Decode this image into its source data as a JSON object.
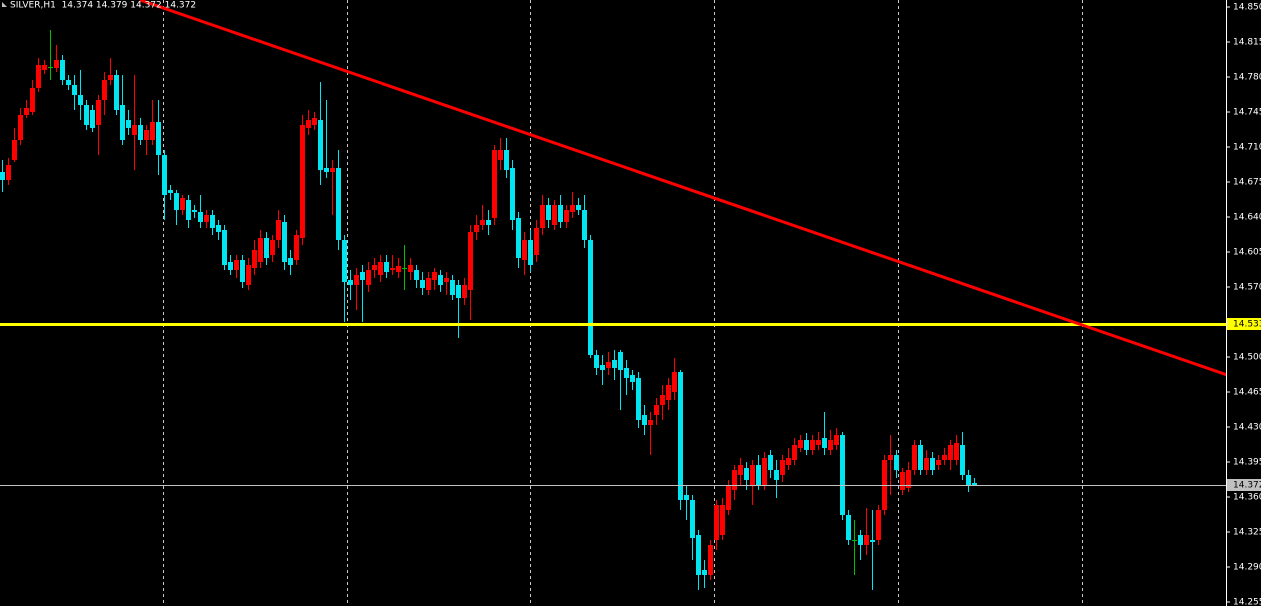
{
  "chart_data": {
    "type": "candlestick",
    "title": "SILVER,H1  14.374 14.379 14.372 14.372",
    "up_color": "#ff0000",
    "down_color": "#00e5f0",
    "doji_color": "#00c000",
    "ylim": [
      14.251,
      14.857
    ],
    "yticks": [
      {
        "value": 14.85,
        "label": "14.850"
      },
      14.815,
      {
        "value": 14.78,
        "label": "14.780"
      },
      14.745,
      {
        "value": 14.71,
        "label": "14.710"
      },
      14.675,
      {
        "value": 14.64,
        "label": "14.640"
      },
      14.605,
      {
        "value": 14.57,
        "label": "14.570"
      },
      {
        "value": 14.5,
        "label": "14.500"
      },
      14.465,
      {
        "value": 14.43,
        "label": "14.430"
      },
      14.395,
      {
        "value": 14.36,
        "label": "14.360"
      },
      14.325,
      {
        "value": 14.29,
        "label": "14.290"
      },
      14.255
    ],
    "levels": [
      {
        "value": 14.533,
        "color": "#ffff00"
      },
      {
        "value": 14.372,
        "color": "#c0c0c0"
      }
    ],
    "trendline": {
      "color": "#ff0000",
      "x": [
        23,
        210
      ],
      "values": [
        14.857,
        14.47
      ]
    },
    "ohlc": [
      [
        14.685,
        14.697,
        14.665,
        14.677
      ],
      [
        14.677,
        14.699,
        14.672,
        14.692
      ],
      [
        14.697,
        14.729,
        14.695,
        14.717
      ],
      [
        14.717,
        14.749,
        14.712,
        14.742
      ],
      [
        14.742,
        14.757,
        14.739,
        14.749
      ],
      [
        14.745,
        14.777,
        14.742,
        14.769
      ],
      [
        14.769,
        14.799,
        14.765,
        14.792
      ],
      [
        14.787,
        14.797,
        14.783,
        14.792
      ],
      [
        14.79,
        14.827,
        14.777,
        14.79
      ],
      [
        14.789,
        14.812,
        14.785,
        14.797
      ],
      [
        14.797,
        14.802,
        14.772,
        14.777
      ],
      [
        14.777,
        14.782,
        14.767,
        14.772
      ],
      [
        14.772,
        14.782,
        14.747,
        14.762
      ],
      [
        14.762,
        14.787,
        14.737,
        14.752
      ],
      [
        14.752,
        14.757,
        14.727,
        14.732
      ],
      [
        14.747,
        14.752,
        14.725,
        14.729
      ],
      [
        14.732,
        14.762,
        14.702,
        14.757
      ],
      [
        14.757,
        14.785,
        14.742,
        14.777
      ],
      [
        14.777,
        14.799,
        14.772,
        14.782
      ],
      [
        14.782,
        14.787,
        14.742,
        14.747
      ],
      [
        14.752,
        14.782,
        14.712,
        14.717
      ],
      [
        14.737,
        14.747,
        14.722,
        14.729
      ],
      [
        14.722,
        14.782,
        14.687,
        14.732
      ],
      [
        14.732,
        14.739,
        14.712,
        14.717
      ],
      [
        14.717,
        14.732,
        14.702,
        14.727
      ],
      [
        14.717,
        14.757,
        14.712,
        14.735
      ],
      [
        14.735,
        14.757,
        14.682,
        14.702
      ],
      [
        14.702,
        14.707,
        14.637,
        14.662
      ],
      [
        14.667,
        14.672,
        14.657,
        14.664
      ],
      [
        14.664,
        14.667,
        14.632,
        14.647
      ],
      [
        14.647,
        14.662,
        14.642,
        14.659
      ],
      [
        14.657,
        14.662,
        14.629,
        14.637
      ],
      [
        14.647,
        14.652,
        14.639,
        14.645
      ],
      [
        14.645,
        14.662,
        14.629,
        14.635
      ],
      [
        14.635,
        14.647,
        14.629,
        14.642
      ],
      [
        14.642,
        14.647,
        14.622,
        14.629
      ],
      [
        14.632,
        14.637,
        14.617,
        14.625
      ],
      [
        14.627,
        14.632,
        14.587,
        14.592
      ],
      [
        14.595,
        14.602,
        14.582,
        14.587
      ],
      [
        14.587,
        14.602,
        14.579,
        14.597
      ],
      [
        14.597,
        14.602,
        14.569,
        14.575
      ],
      [
        14.572,
        14.599,
        14.567,
        14.592
      ],
      [
        14.589,
        14.617,
        14.582,
        14.607
      ],
      [
        14.595,
        14.627,
        14.589,
        14.619
      ],
      [
        14.619,
        14.625,
        14.592,
        14.599
      ],
      [
        14.602,
        14.622,
        14.595,
        14.617
      ],
      [
        14.617,
        14.647,
        14.609,
        14.637
      ],
      [
        14.635,
        14.642,
        14.587,
        14.595
      ],
      [
        14.599,
        14.607,
        14.582,
        14.592
      ],
      [
        14.597,
        14.627,
        14.592,
        14.622
      ],
      [
        14.619,
        14.742,
        14.612,
        14.732
      ],
      [
        14.729,
        14.747,
        14.722,
        14.737
      ],
      [
        14.732,
        14.745,
        14.727,
        14.739
      ],
      [
        14.737,
        14.775,
        14.672,
        14.687
      ],
      [
        14.689,
        14.757,
        14.679,
        14.685
      ],
      [
        14.685,
        14.697,
        14.642,
        14.689
      ],
      [
        14.689,
        14.707,
        14.607,
        14.617
      ],
      [
        14.617,
        14.622,
        14.535,
        14.575
      ],
      [
        14.577,
        14.587,
        14.557,
        14.572
      ],
      [
        14.572,
        14.589,
        14.547,
        14.582
      ],
      [
        14.585,
        14.592,
        14.535,
        14.577
      ],
      [
        14.572,
        14.595,
        14.565,
        14.587
      ],
      [
        14.587,
        14.599,
        14.579,
        14.592
      ],
      [
        14.582,
        14.602,
        14.575,
        14.595
      ],
      [
        14.595,
        14.602,
        14.579,
        14.585
      ],
      [
        14.587,
        14.602,
        14.582,
        14.589
      ],
      [
        14.585,
        14.599,
        14.579,
        14.591
      ],
      [
        14.589,
        14.612,
        14.567,
        14.589
      ],
      [
        14.585,
        14.599,
        14.577,
        14.592
      ],
      [
        14.587,
        14.592,
        14.569,
        14.577
      ],
      [
        14.577,
        14.585,
        14.562,
        14.569
      ],
      [
        14.567,
        14.585,
        14.562,
        14.579
      ],
      [
        14.577,
        14.589,
        14.567,
        14.585
      ],
      [
        14.582,
        14.587,
        14.565,
        14.572
      ],
      [
        14.575,
        14.585,
        14.562,
        14.579
      ],
      [
        14.577,
        14.582,
        14.557,
        14.562
      ],
      [
        14.572,
        14.577,
        14.519,
        14.559
      ],
      [
        14.559,
        14.579,
        14.552,
        14.572
      ],
      [
        14.567,
        14.632,
        14.537,
        14.625
      ],
      [
        14.625,
        14.642,
        14.617,
        14.632
      ],
      [
        14.632,
        14.652,
        14.627,
        14.637
      ],
      [
        14.637,
        14.647,
        14.622,
        14.632
      ],
      [
        14.639,
        14.712,
        14.632,
        14.707
      ],
      [
        14.697,
        14.719,
        14.687,
        14.707
      ],
      [
        14.707,
        14.719,
        14.679,
        14.687
      ],
      [
        14.689,
        14.697,
        14.627,
        14.637
      ],
      [
        14.639,
        14.645,
        14.589,
        14.599
      ],
      [
        14.597,
        14.625,
        14.582,
        14.617
      ],
      [
        14.617,
        14.627,
        14.585,
        14.592
      ],
      [
        14.602,
        14.637,
        14.595,
        14.629
      ],
      [
        14.629,
        14.662,
        14.622,
        14.652
      ],
      [
        14.652,
        14.659,
        14.629,
        14.637
      ],
      [
        14.632,
        14.657,
        14.627,
        14.652
      ],
      [
        14.652,
        14.662,
        14.629,
        14.635
      ],
      [
        14.635,
        14.652,
        14.629,
        14.647
      ],
      [
        14.645,
        14.665,
        14.639,
        14.652
      ],
      [
        14.652,
        14.659,
        14.642,
        14.647
      ],
      [
        14.647,
        14.662,
        14.609,
        14.617
      ],
      [
        14.617,
        14.622,
        14.499,
        14.502
      ],
      [
        14.502,
        14.507,
        14.482,
        14.489
      ],
      [
        14.492,
        14.502,
        14.472,
        14.487
      ],
      [
        14.489,
        14.505,
        14.482,
        14.495
      ],
      [
        14.497,
        14.507,
        14.477,
        14.489
      ],
      [
        14.505,
        14.507,
        14.447,
        14.487
      ],
      [
        14.489,
        14.497,
        14.462,
        14.479
      ],
      [
        14.482,
        14.487,
        14.467,
        14.475
      ],
      [
        14.479,
        14.485,
        14.429,
        14.437
      ],
      [
        14.442,
        14.452,
        14.422,
        14.432
      ],
      [
        14.432,
        14.445,
        14.402,
        14.437
      ],
      [
        14.442,
        14.459,
        14.432,
        14.452
      ],
      [
        14.452,
        14.472,
        14.437,
        14.462
      ],
      [
        14.457,
        14.479,
        14.447,
        14.472
      ],
      [
        14.465,
        14.499,
        14.457,
        14.485
      ],
      [
        14.485,
        14.487,
        14.347,
        14.357
      ],
      [
        14.362,
        14.372,
        14.337,
        14.357
      ],
      [
        14.357,
        14.362,
        14.297,
        14.319
      ],
      [
        14.322,
        14.327,
        14.267,
        14.282
      ],
      [
        14.287,
        14.297,
        14.269,
        14.282
      ],
      [
        14.282,
        14.317,
        14.277,
        14.312
      ],
      [
        14.317,
        14.357,
        14.307,
        14.352
      ],
      [
        14.322,
        14.359,
        14.317,
        14.352
      ],
      [
        14.347,
        14.377,
        14.342,
        14.372
      ],
      [
        14.367,
        14.392,
        14.357,
        14.387
      ],
      [
        14.382,
        14.399,
        14.372,
        14.392
      ],
      [
        14.389,
        14.395,
        14.367,
        14.377
      ],
      [
        14.372,
        14.397,
        14.352,
        14.392
      ],
      [
        14.392,
        14.402,
        14.367,
        14.372
      ],
      [
        14.372,
        14.405,
        14.367,
        14.399
      ],
      [
        14.402,
        14.407,
        14.379,
        14.387
      ],
      [
        14.387,
        14.397,
        14.359,
        14.377
      ],
      [
        14.382,
        14.402,
        14.375,
        14.397
      ],
      [
        14.392,
        14.409,
        14.387,
        14.399
      ],
      [
        14.397,
        14.419,
        14.392,
        14.412
      ],
      [
        14.409,
        14.422,
        14.405,
        14.417
      ],
      [
        14.417,
        14.424,
        14.402,
        14.407
      ],
      [
        14.407,
        14.422,
        14.402,
        14.417
      ],
      [
        14.412,
        14.425,
        14.407,
        14.417
      ],
      [
        14.419,
        14.445,
        14.402,
        14.409
      ],
      [
        14.407,
        14.427,
        14.402,
        14.417
      ],
      [
        14.412,
        14.429,
        14.407,
        14.422
      ],
      [
        14.422,
        14.425,
        14.337,
        14.342
      ],
      [
        14.342,
        14.347,
        14.312,
        14.317
      ],
      [
        14.317,
        14.337,
        14.282,
        14.317
      ],
      [
        14.322,
        14.327,
        14.297,
        14.312
      ],
      [
        14.312,
        14.349,
        14.302,
        14.322
      ],
      [
        14.317,
        14.347,
        14.267,
        14.315
      ],
      [
        14.317,
        14.352,
        14.312,
        14.347
      ],
      [
        14.347,
        14.402,
        14.342,
        14.397
      ],
      [
        14.397,
        14.422,
        14.362,
        14.402
      ],
      [
        14.402,
        14.407,
        14.379,
        14.387
      ],
      [
        14.367,
        14.389,
        14.362,
        14.385
      ],
      [
        14.369,
        14.395,
        14.365,
        14.387
      ],
      [
        14.387,
        14.417,
        14.382,
        14.412
      ],
      [
        14.412,
        14.417,
        14.382,
        14.387
      ],
      [
        14.387,
        14.407,
        14.382,
        14.399
      ],
      [
        14.399,
        14.405,
        14.382,
        14.387
      ],
      [
        14.392,
        14.402,
        14.387,
        14.397
      ],
      [
        14.397,
        14.409,
        14.392,
        14.402
      ],
      [
        14.397,
        14.417,
        14.387,
        14.412
      ],
      [
        14.397,
        14.422,
        14.392,
        14.414
      ],
      [
        14.412,
        14.425,
        14.377,
        14.382
      ],
      [
        14.382,
        14.387,
        14.365,
        14.372
      ],
      [
        14.374,
        14.379,
        14.372,
        14.372
      ]
    ]
  }
}
